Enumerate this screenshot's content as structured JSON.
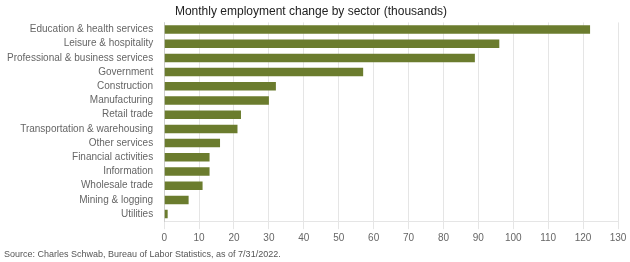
{
  "chart_data": {
    "type": "bar",
    "orientation": "horizontal",
    "title": "Monthly employment change by sector (thousands)",
    "categories": [
      "Utilities",
      "Mining & logging",
      "Wholesale trade",
      "Information",
      "Financial activities",
      "Other services",
      "Transportation & warehousing",
      "Retail trade",
      "Manufacturing",
      "Construction",
      "Government",
      "Professional & business services",
      "Leisure & hospitality",
      "Education & health services"
    ],
    "values": [
      1,
      7,
      11,
      13,
      13,
      16,
      21,
      22,
      30,
      32,
      57,
      89,
      96,
      122
    ],
    "color": "#6b7c2e",
    "xlim": [
      0,
      130
    ],
    "xticks": [
      0,
      10,
      20,
      30,
      40,
      50,
      60,
      70,
      80,
      90,
      100,
      110,
      120,
      130
    ],
    "grid": true,
    "annotations": [
      "Source: Charles Schwab, Bureau of Labor Statistics, as of 7/31/2022."
    ]
  }
}
